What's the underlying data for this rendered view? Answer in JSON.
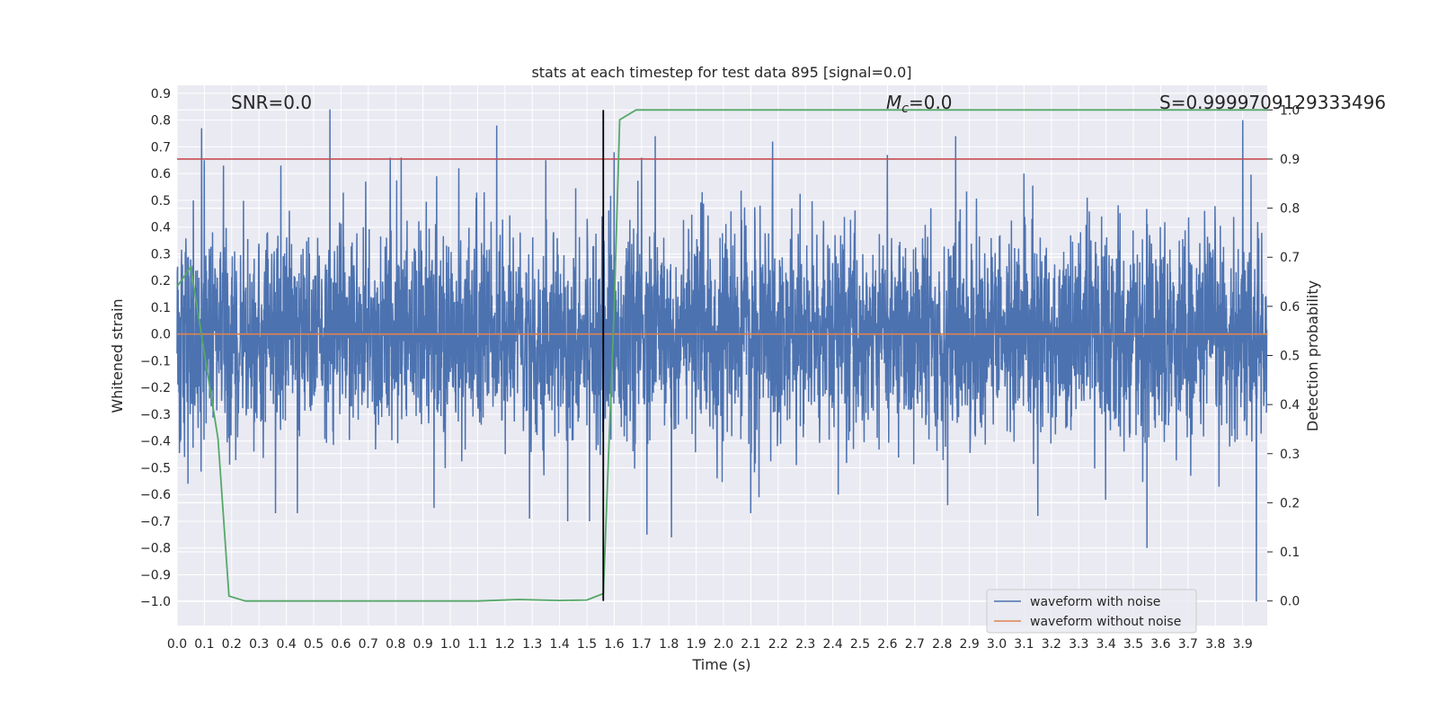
{
  "chart_data": {
    "type": "line",
    "title": "stats at each timestep for test data 895 [signal=0.0]",
    "xlabel": "Time (s)",
    "ylabel": "Whitened strain",
    "y2label": "Detection probability",
    "xlim": [
      0.0,
      3.99
    ],
    "ylim": [
      -1.09,
      0.93
    ],
    "y2lim": [
      -0.05,
      1.05
    ],
    "x_ticks": [
      0.0,
      0.1,
      0.2,
      0.3,
      0.4,
      0.5,
      0.6,
      0.7,
      0.8,
      0.9,
      1.0,
      1.1,
      1.2,
      1.3,
      1.4,
      1.5,
      1.6,
      1.7,
      1.8,
      1.9,
      2.0,
      2.1,
      2.2,
      2.3,
      2.4,
      2.5,
      2.6,
      2.7,
      2.8,
      2.9,
      3.0,
      3.1,
      3.2,
      3.3,
      3.4,
      3.5,
      3.6,
      3.7,
      3.8,
      3.9
    ],
    "y_ticks": [
      0.9,
      0.8,
      0.7,
      0.6,
      0.5,
      0.4,
      0.3,
      0.2,
      0.1,
      0.0,
      -0.1,
      -0.2,
      -0.3,
      -0.4,
      -0.5,
      -0.6,
      -0.7,
      -0.8,
      -0.9,
      -1.0
    ],
    "y2_ticks": [
      0.0,
      0.1,
      0.2,
      0.3,
      0.4,
      0.5,
      0.6,
      0.7,
      0.8,
      0.9,
      1.0
    ],
    "grid": true,
    "legend": "lower-right",
    "annotations": {
      "snr": "SNR=0.0",
      "mc_symbol": "M",
      "mc_sub": "c",
      "mc_value": "=0.0",
      "s": "S=0.9999709129333496"
    },
    "series": [
      {
        "name": "waveform with noise",
        "color": "#4c72b0",
        "axis": "left",
        "sample_rate": 1024,
        "duration": 3.99,
        "amplitude_sigma": 0.19,
        "peaks": [
          [
            0.02,
            0.26
          ],
          [
            0.06,
            0.5
          ],
          [
            0.09,
            0.77
          ],
          [
            0.1,
            0.65
          ],
          [
            0.17,
            0.63
          ],
          [
            0.21,
            0.13
          ],
          [
            0.38,
            0.63
          ],
          [
            0.44,
            -0.67
          ],
          [
            0.56,
            0.84
          ],
          [
            0.69,
            0.57
          ],
          [
            0.78,
            0.66
          ],
          [
            0.82,
            0.66
          ],
          [
            0.95,
            0.59
          ],
          [
            1.17,
            0.78
          ],
          [
            1.35,
            0.65
          ],
          [
            1.51,
            -0.7
          ],
          [
            1.55,
            -0.1
          ],
          [
            1.6,
            0.68
          ],
          [
            1.7,
            0.66
          ],
          [
            1.75,
            0.74
          ],
          [
            1.81,
            -0.76
          ],
          [
            2.1,
            -0.67
          ],
          [
            2.18,
            0.72
          ],
          [
            2.6,
            0.67
          ],
          [
            2.85,
            0.74
          ],
          [
            3.1,
            0.6
          ],
          [
            3.15,
            -0.68
          ],
          [
            3.45,
            -0.03
          ],
          [
            3.55,
            -0.8
          ],
          [
            3.9,
            0.8
          ],
          [
            3.95,
            -1.0
          ],
          [
            0.04,
            -0.56
          ],
          [
            0.36,
            -0.67
          ],
          [
            0.94,
            -0.65
          ],
          [
            1.29,
            -0.69
          ],
          [
            1.43,
            -0.7
          ],
          [
            1.72,
            -0.75
          ],
          [
            2.13,
            -0.61
          ],
          [
            2.42,
            -0.6
          ],
          [
            2.82,
            -0.64
          ],
          [
            3.71,
            -0.53
          ]
        ]
      },
      {
        "name": "waveform without noise",
        "color": "#dd8452",
        "axis": "left",
        "x": [
          0.0,
          3.99
        ],
        "y": [
          0.0,
          0.0
        ]
      },
      {
        "name": "",
        "color": "#55a868",
        "axis": "right",
        "x": [
          0.0,
          0.05,
          0.15,
          0.19,
          0.25,
          0.5,
          1.0,
          1.1,
          1.25,
          1.4,
          1.5,
          1.56,
          1.6,
          1.62,
          1.68,
          3.99
        ],
        "y": [
          0.64,
          0.68,
          0.33,
          0.01,
          0.0,
          0.0,
          0.0,
          0.0,
          0.003,
          0.001,
          0.002,
          0.015,
          0.6,
          0.98,
          1.0,
          1.0
        ]
      }
    ],
    "threshold": {
      "value": 0.9,
      "axis": "right",
      "color": "#c44e52"
    },
    "vline": {
      "x": 1.56,
      "color": "#000000"
    }
  }
}
